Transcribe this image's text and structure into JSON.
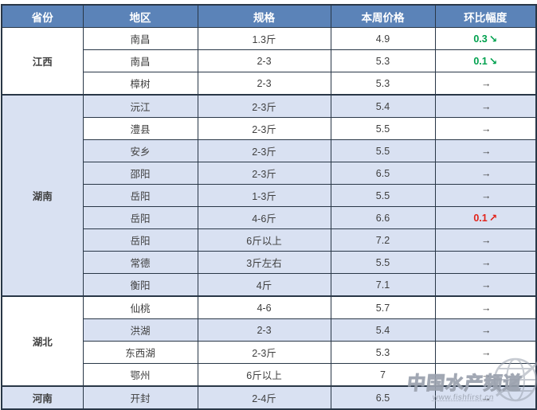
{
  "colors": {
    "header_bg": "#5b83b8",
    "header_text": "#ffffff",
    "row_shaded": "#d9e1f2",
    "row_plain": "#ffffff",
    "border": "#293747",
    "text": "#3f3f3f",
    "trend_up": "#e2231a",
    "trend_down": "#00a14e",
    "trend_flat": "#3f3f3f"
  },
  "table": {
    "headers": [
      {
        "key": "province",
        "label": "省份"
      },
      {
        "key": "region",
        "label": "地区"
      },
      {
        "key": "spec",
        "label": "规格"
      },
      {
        "key": "price",
        "label": "本周价格"
      },
      {
        "key": "change",
        "label": "环比幅度"
      }
    ],
    "groups": [
      {
        "province": "江西",
        "province_shaded": false,
        "rows": [
          {
            "region": "南昌",
            "spec": "1.3斤",
            "price": "4.9",
            "change": "0.3",
            "arrow": "↘",
            "trend": "down",
            "shaded": false
          },
          {
            "region": "南昌",
            "spec": "2-3",
            "price": "5.3",
            "change": "0.1",
            "arrow": "↘",
            "trend": "down",
            "shaded": false
          },
          {
            "region": "樟树",
            "spec": "2-3",
            "price": "5.3",
            "change": "",
            "arrow": "→",
            "trend": "flat",
            "shaded": false
          }
        ]
      },
      {
        "province": "湖南",
        "province_shaded": true,
        "rows": [
          {
            "region": "沅江",
            "spec": "2-3斤",
            "price": "5.4",
            "change": "",
            "arrow": "→",
            "trend": "flat",
            "shaded": true
          },
          {
            "region": "澧县",
            "spec": "2-3斤",
            "price": "5.5",
            "change": "",
            "arrow": "→",
            "trend": "flat",
            "shaded": false
          },
          {
            "region": "安乡",
            "spec": "2-3斤",
            "price": "5.5",
            "change": "",
            "arrow": "→",
            "trend": "flat",
            "shaded": true
          },
          {
            "region": "邵阳",
            "spec": "2-3斤",
            "price": "6.5",
            "change": "",
            "arrow": "→",
            "trend": "flat",
            "shaded": true
          },
          {
            "region": "岳阳",
            "spec": "1-3斤",
            "price": "5.5",
            "change": "",
            "arrow": "→",
            "trend": "flat",
            "shaded": true
          },
          {
            "region": "岳阳",
            "spec": "4-6斤",
            "price": "6.6",
            "change": "0.1",
            "arrow": "↗",
            "trend": "up",
            "shaded": true
          },
          {
            "region": "岳阳",
            "spec": "6斤以上",
            "price": "7.2",
            "change": "",
            "arrow": "→",
            "trend": "flat",
            "shaded": true
          },
          {
            "region": "常德",
            "spec": "3斤左右",
            "price": "5.5",
            "change": "",
            "arrow": "→",
            "trend": "flat",
            "shaded": true
          },
          {
            "region": "衡阳",
            "spec": "4斤",
            "price": "7.1",
            "change": "",
            "arrow": "→",
            "trend": "flat",
            "shaded": true
          }
        ]
      },
      {
        "province": "湖北",
        "province_shaded": false,
        "rows": [
          {
            "region": "仙桃",
            "spec": "4-6",
            "price": "5.7",
            "change": "",
            "arrow": "→",
            "trend": "flat",
            "shaded": false
          },
          {
            "region": "洪湖",
            "spec": "2-3",
            "price": "5.4",
            "change": "",
            "arrow": "→",
            "trend": "flat",
            "shaded": true
          },
          {
            "region": "东西湖",
            "spec": "2-3斤",
            "price": "5.3",
            "change": "",
            "arrow": "→",
            "trend": "flat",
            "shaded": false
          },
          {
            "region": "鄂州",
            "spec": "6斤以上",
            "price": "7",
            "change": "",
            "arrow": "→",
            "trend": "flat",
            "shaded": false
          }
        ]
      },
      {
        "province": "河南",
        "province_shaded": true,
        "rows": [
          {
            "region": "开封",
            "spec": "2-4斤",
            "price": "6.5",
            "change": "",
            "arrow": "→",
            "trend": "flat",
            "shaded": true
          }
        ]
      }
    ]
  },
  "watermark": {
    "title": "中国水产频道",
    "url": "www.fishfirst.cn",
    "globe_icon": "globe-icon"
  },
  "chart_data": {
    "type": "table",
    "title": "",
    "columns": [
      "省份",
      "地区",
      "规格",
      "本周价格",
      "环比幅度"
    ],
    "rows": [
      [
        "江西",
        "南昌",
        "1.3斤",
        "4.9",
        "0.3↘"
      ],
      [
        "江西",
        "南昌",
        "2-3",
        "5.3",
        "0.1↘"
      ],
      [
        "江西",
        "樟树",
        "2-3",
        "5.3",
        "→"
      ],
      [
        "湖南",
        "沅江",
        "2-3斤",
        "5.4",
        "→"
      ],
      [
        "湖南",
        "澧县",
        "2-3斤",
        "5.5",
        "→"
      ],
      [
        "湖南",
        "安乡",
        "2-3斤",
        "5.5",
        "→"
      ],
      [
        "湖南",
        "邵阳",
        "2-3斤",
        "6.5",
        "→"
      ],
      [
        "湖南",
        "岳阳",
        "1-3斤",
        "5.5",
        "→"
      ],
      [
        "湖南",
        "岳阳",
        "4-6斤",
        "6.6",
        "0.1↗"
      ],
      [
        "湖南",
        "岳阳",
        "6斤以上",
        "7.2",
        "→"
      ],
      [
        "湖南",
        "常德",
        "3斤左右",
        "5.5",
        "→"
      ],
      [
        "湖南",
        "衡阳",
        "4斤",
        "7.1",
        "→"
      ],
      [
        "湖北",
        "仙桃",
        "4-6",
        "5.7",
        "→"
      ],
      [
        "湖北",
        "洪湖",
        "2-3",
        "5.4",
        "→"
      ],
      [
        "湖北",
        "东西湖",
        "2-3斤",
        "5.3",
        "→"
      ],
      [
        "湖北",
        "鄂州",
        "6斤以上",
        "7",
        "→"
      ],
      [
        "河南",
        "开封",
        "2-4斤",
        "6.5",
        "→"
      ]
    ]
  }
}
